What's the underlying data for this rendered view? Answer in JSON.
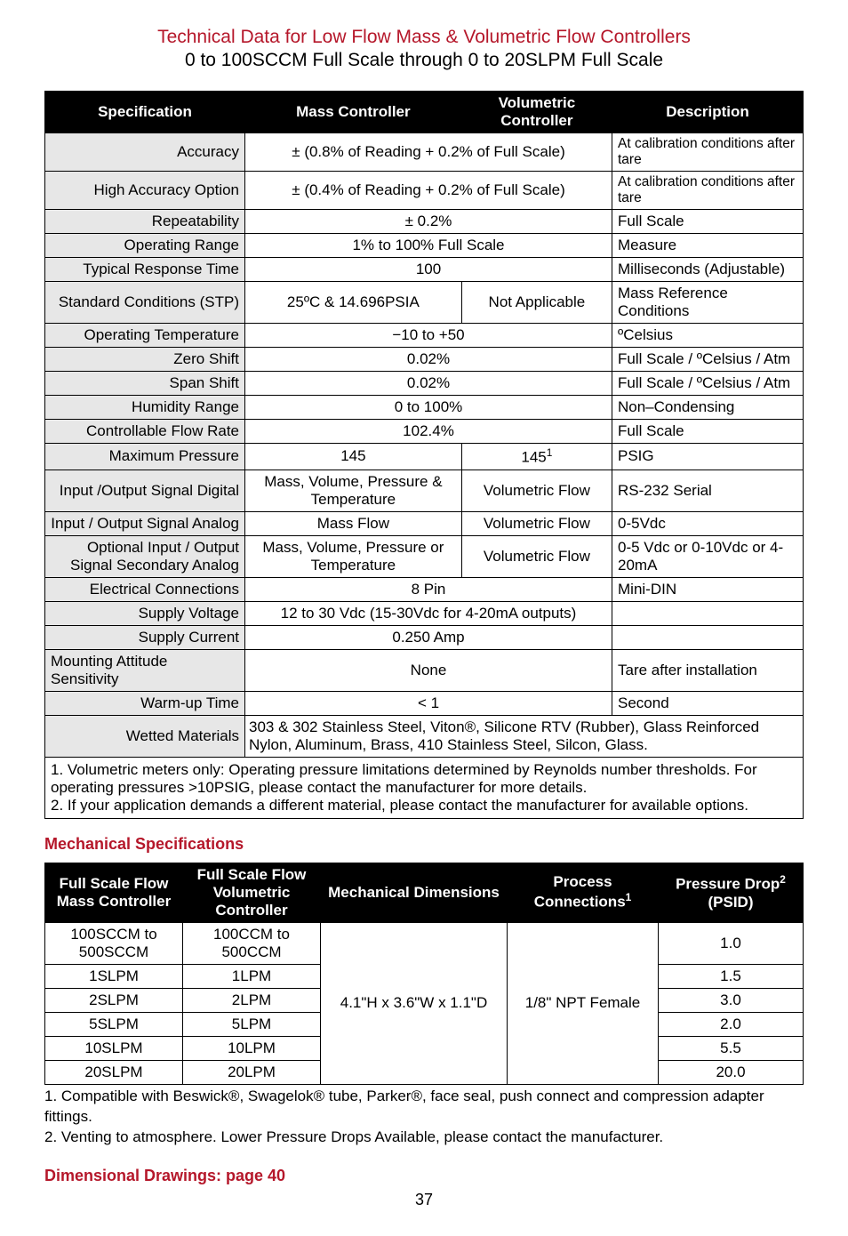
{
  "header": {
    "title1": "Technical Data for Low Flow Mass & Volumetric Flow Controllers",
    "title2": "0 to 100SCCM Full Scale through 0 to 20SLPM Full Scale"
  },
  "spec_table": {
    "headers": {
      "spec": "Specification",
      "mass": "Mass Controller",
      "vol": "Volumetric Controller",
      "desc": "Description"
    },
    "rows": [
      {
        "spec": "Accuracy",
        "merged": "± (0.8% of Reading + 0.2% of Full Scale)",
        "desc": "At calibration conditions after tare",
        "desc_small": true
      },
      {
        "spec": "High Accuracy Option",
        "merged": "± (0.4% of Reading + 0.2% of Full Scale)",
        "desc": "At calibration conditions after tare",
        "desc_small": true
      },
      {
        "spec": "Repeatability",
        "merged": "± 0.2%",
        "desc": "Full Scale"
      },
      {
        "spec": "Operating Range",
        "merged": "1% to 100% Full Scale",
        "desc": "Measure"
      },
      {
        "spec": "Typical Response Time",
        "merged": "100",
        "desc": "Milliseconds (Adjustable)"
      },
      {
        "spec": "Standard Conditions (STP)",
        "mass": "25ºC & 14.696PSIA",
        "vol": "Not Applicable",
        "desc": "Mass Reference Conditions"
      },
      {
        "spec": "Operating Temperature",
        "merged": "−10 to +50",
        "desc": "ºCelsius"
      },
      {
        "spec": "Zero Shift",
        "merged": "0.02%",
        "desc": "Full Scale / ºCelsius / Atm"
      },
      {
        "spec": "Span Shift",
        "merged": "0.02%",
        "desc": "Full Scale / ºCelsius / Atm"
      },
      {
        "spec": "Humidity Range",
        "merged": "0 to 100%",
        "desc": "Non–Condensing"
      },
      {
        "spec": "Controllable Flow Rate",
        "merged": "102.4%",
        "desc": "Full Scale"
      },
      {
        "spec": "Maximum Pressure",
        "mass": "145",
        "vol_html": "145<sup>1</sup>",
        "desc": "PSIG"
      },
      {
        "spec": "Input /Output Signal Digital",
        "mass": "Mass, Volume, Pressure & Temperature",
        "vol": "Volumetric Flow",
        "desc": "RS-232 Serial"
      },
      {
        "spec": "Input / Output Signal Analog",
        "mass": "Mass Flow",
        "vol": "Volumetric Flow",
        "desc": "0-5Vdc"
      },
      {
        "spec": "Optional Input / Output Signal Secondary Analog",
        "mass": "Mass, Volume, Pressure or Temperature",
        "vol": "Volumetric Flow",
        "desc": "0-5 Vdc or 0-10Vdc or 4-20mA"
      },
      {
        "spec": "Electrical Connections",
        "merged": "8 Pin",
        "desc": "Mini-DIN"
      },
      {
        "spec": "Supply Voltage",
        "merged": "12 to 30 Vdc  (15-30Vdc for 4-20mA outputs)",
        "desc": ""
      },
      {
        "spec": "Supply Current",
        "merged": "0.250 Amp",
        "desc": ""
      },
      {
        "spec": "Mounting Attitude Sensitivity",
        "merged": "None",
        "desc": "Tare after installation",
        "spec_left": true
      },
      {
        "spec": "Warm-up Time",
        "merged": "< 1",
        "desc": "Second"
      },
      {
        "spec": "Wetted Materials",
        "wetted": "303 & 302 Stainless Steel, Viton®, Silicone RTV (Rubber), Glass Reinforced Nylon, Aluminum, Brass, 410 Stainless Steel, Silcon, Glass."
      }
    ],
    "notes": "1. Volumetric meters only: Operating pressure limitations determined by Reynolds number thresholds. For operating pressures >10PSIG, please contact the manufacturer for more details.\n2. If your application demands a different material, please contact the manufacturer for available options."
  },
  "mech_heading": "Mechanical Specifications",
  "mech_table": {
    "headers": {
      "mass": "Full Scale Flow Mass Controller",
      "vol": "Full Scale Flow Volumetric Controller",
      "dim": "Mechanical Dimensions",
      "proc_html": "Process Connections<sup>1</sup>",
      "drop_html": "Pressure Drop<sup>2</sup> (PSID)"
    },
    "rows": [
      {
        "mass": "100SCCM to 500SCCM",
        "vol": "100CCM to 500CCM",
        "drop": "1.0"
      },
      {
        "mass": "1SLPM",
        "vol": "1LPM",
        "drop": "1.5"
      },
      {
        "mass": "2SLPM",
        "vol": "2LPM",
        "drop": "3.0"
      },
      {
        "mass": "5SLPM",
        "vol": "5LPM",
        "drop": "2.0"
      },
      {
        "mass": "10SLPM",
        "vol": "10LPM",
        "drop": "5.5"
      },
      {
        "mass": "20SLPM",
        "vol": "20LPM",
        "drop": "20.0"
      }
    ],
    "dim_merged": "4.1\"H x 3.6\"W x 1.1\"D",
    "proc_merged": "1/8\" NPT Female",
    "notes": "1. Compatible with Beswick®, Swagelok® tube, Parker®, face seal, push connect and compression adapter fittings.\n2. Venting to atmosphere. Lower Pressure Drops Available, please contact the manufacturer."
  },
  "footer": {
    "drawings": "Dimensional Drawings: page 40",
    "page": "37"
  },
  "colors": {
    "accent": "#b5172a",
    "header_bg": "#000000",
    "header_fg": "#ffffff",
    "spec_bg": "#e7e7e7",
    "border": "#000000",
    "background": "#ffffff"
  }
}
